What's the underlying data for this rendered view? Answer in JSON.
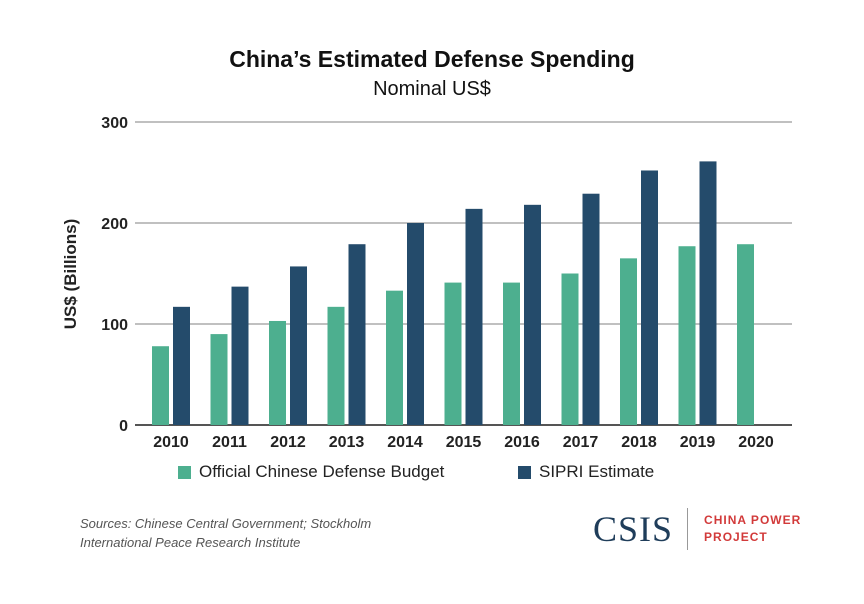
{
  "chart_data": {
    "type": "bar",
    "title": "China’s Estimated Defense Spending",
    "subtitle": "Nominal US$",
    "ylabel": "US$ (Billions)",
    "xlabel": "",
    "ylim": [
      0,
      300
    ],
    "yticks": [
      0,
      100,
      200,
      300
    ],
    "grid": true,
    "legend_position": "bottom",
    "categories": [
      "2010",
      "2011",
      "2012",
      "2013",
      "2014",
      "2015",
      "2016",
      "2017",
      "2018",
      "2019",
      "2020"
    ],
    "series": [
      {
        "name": "Official Chinese Defense Budget",
        "color": "#4daf8f",
        "values": [
          78,
          90,
          103,
          117,
          133,
          141,
          141,
          150,
          165,
          177,
          179
        ]
      },
      {
        "name": "SIPRI Estimate",
        "color": "#244b6b",
        "values": [
          117,
          137,
          157,
          179,
          200,
          214,
          218,
          229,
          252,
          261,
          null
        ]
      }
    ]
  },
  "source_lines": [
    "Sources: Chinese Central Government; Stockholm",
    "International Peace Research Institute"
  ],
  "logo": {
    "org": "CSIS",
    "project_line1": "CHINA POWER",
    "project_line2": "PROJECT"
  },
  "colors": {
    "grid": "#9a9a9a",
    "axis": "#555555",
    "text": "#222222"
  }
}
